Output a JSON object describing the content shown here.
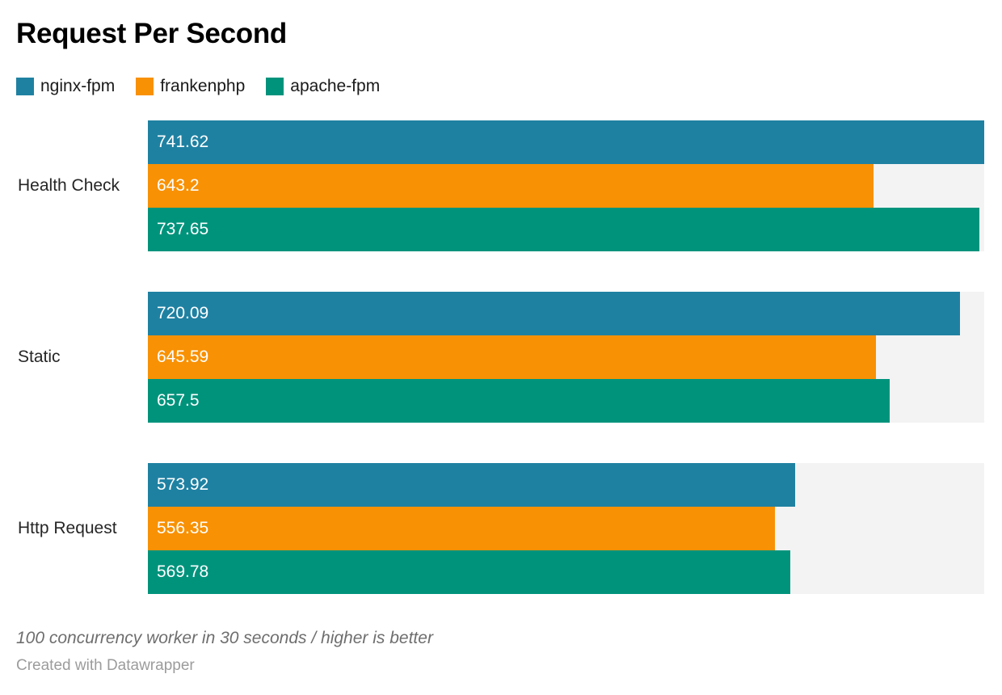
{
  "chart_data": {
    "type": "bar",
    "orientation": "horizontal",
    "title": "Request Per Second",
    "categories": [
      "Health Check",
      "Static",
      "Http Request"
    ],
    "series": [
      {
        "name": "nginx-fpm",
        "color": "#1f81a2",
        "values": [
          741.62,
          720.09,
          573.92
        ],
        "labels": [
          "741.62",
          "720.09",
          "573.92"
        ]
      },
      {
        "name": "frankenphp",
        "color": "#f89104",
        "values": [
          643.2,
          645.59,
          556.35
        ],
        "labels": [
          "643.2",
          "645.59",
          "556.35"
        ]
      },
      {
        "name": "apache-fpm",
        "color": "#00937c",
        "values": [
          737.65,
          657.5,
          569.78
        ],
        "labels": [
          "737.65",
          "657.5",
          "569.78"
        ]
      }
    ],
    "xlim": [
      0,
      741.62
    ],
    "grid": false,
    "axis_ticks": "none",
    "legend_position": "top",
    "value_labels": "inside-left",
    "value_label_color": "#ffffff",
    "track_color": "#f3f3f3",
    "note": "100 concurrency worker in 30 seconds / higher is better",
    "attribution": "Created with Datawrapper"
  }
}
